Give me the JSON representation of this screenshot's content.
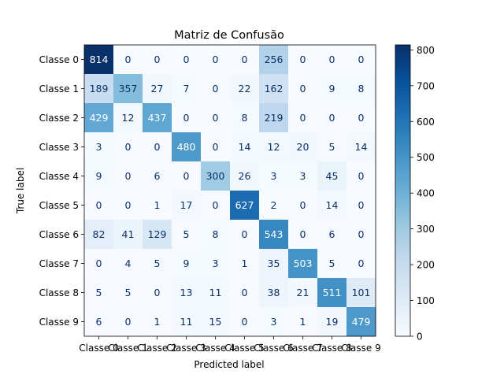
{
  "chart_data": {
    "type": "heatmap",
    "title": "Matriz de Confusão",
    "xlabel": "Predicted label",
    "ylabel": "True label",
    "row_labels": [
      "Classe 0",
      "Classe 1",
      "Classe 2",
      "Classe 3",
      "Classe 4",
      "Classe 5",
      "Classe 6",
      "Classe 7",
      "Classe 8",
      "Classe 9"
    ],
    "col_labels": [
      "Classe 0",
      "Classe 1",
      "Classe 2",
      "Classe 3",
      "Classe 4",
      "Classe 5",
      "Classe 6",
      "Classe 7",
      "Classe 8",
      "Classe 9"
    ],
    "values": [
      [
        814,
        0,
        0,
        0,
        0,
        0,
        256,
        0,
        0,
        0
      ],
      [
        189,
        357,
        27,
        7,
        0,
        22,
        162,
        0,
        9,
        8
      ],
      [
        429,
        12,
        437,
        0,
        0,
        8,
        219,
        0,
        0,
        0
      ],
      [
        3,
        0,
        0,
        480,
        0,
        14,
        12,
        20,
        5,
        14
      ],
      [
        9,
        0,
        6,
        0,
        300,
        26,
        3,
        3,
        45,
        0
      ],
      [
        0,
        0,
        1,
        17,
        0,
        627,
        2,
        0,
        14,
        0
      ],
      [
        82,
        41,
        129,
        5,
        8,
        0,
        543,
        0,
        6,
        0
      ],
      [
        0,
        4,
        5,
        9,
        3,
        1,
        35,
        503,
        5,
        0
      ],
      [
        5,
        5,
        0,
        13,
        11,
        0,
        38,
        21,
        511,
        101
      ],
      [
        6,
        0,
        1,
        11,
        15,
        0,
        3,
        1,
        19,
        479
      ]
    ],
    "colormap": "Blues",
    "vmin": 0,
    "vmax": 814,
    "colorbar_ticks": [
      0,
      100,
      200,
      300,
      400,
      500,
      600,
      700,
      800
    ],
    "grid": false
  }
}
